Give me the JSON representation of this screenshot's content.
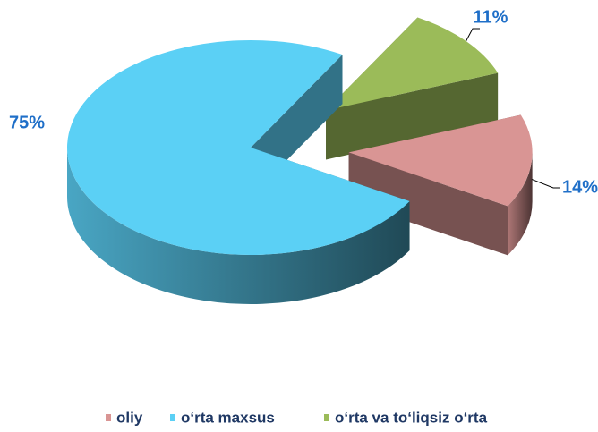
{
  "chart_data": {
    "type": "pie",
    "categories": [
      "oliy",
      "o‘rta maxsus",
      "o‘rta va to‘liqsiz o‘rta"
    ],
    "values": [
      14,
      75,
      11
    ],
    "value_labels": [
      "14%",
      "75%",
      "11%"
    ],
    "colors": [
      "#d99594",
      "#5bd0f5",
      "#9bbb59"
    ],
    "legend": "bottom"
  }
}
